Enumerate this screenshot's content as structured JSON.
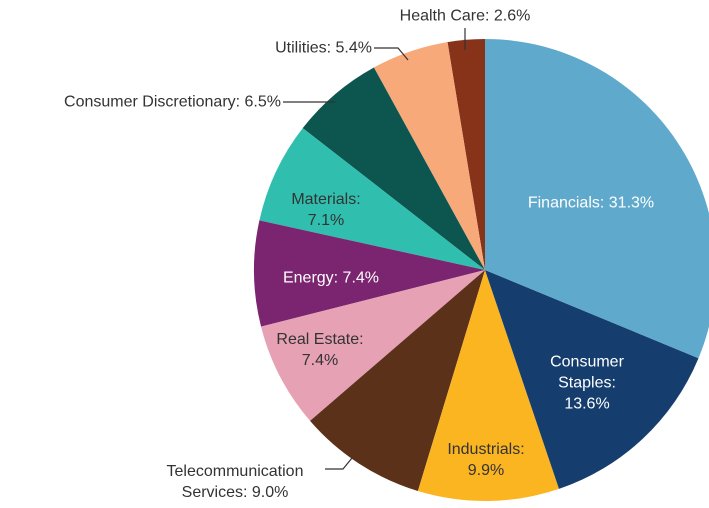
{
  "chart_data": {
    "type": "pie",
    "labels": [
      "Financials: 31.3%",
      "Consumer Staples: 13.6%",
      "Industrials: 9.9%",
      "Telecommunication Services: 9.0%",
      "Real Estate: 7.4%",
      "Energy: 7.4%",
      "Materials: 7.1%",
      "Consumer Discretionary: 6.5%",
      "Utilities: 5.4%",
      "Health Care: 2.6%"
    ],
    "values": [
      31.3,
      13.6,
      9.9,
      9.0,
      7.4,
      7.4,
      7.1,
      6.5,
      5.4,
      2.6
    ],
    "colors": [
      "#5fa9cd",
      "#153d6e",
      "#fbb520",
      "#5c3119",
      "#e6a1b5",
      "#7b2570",
      "#30bfae",
      "#0c564f",
      "#f8a979",
      "#86331a"
    ]
  }
}
